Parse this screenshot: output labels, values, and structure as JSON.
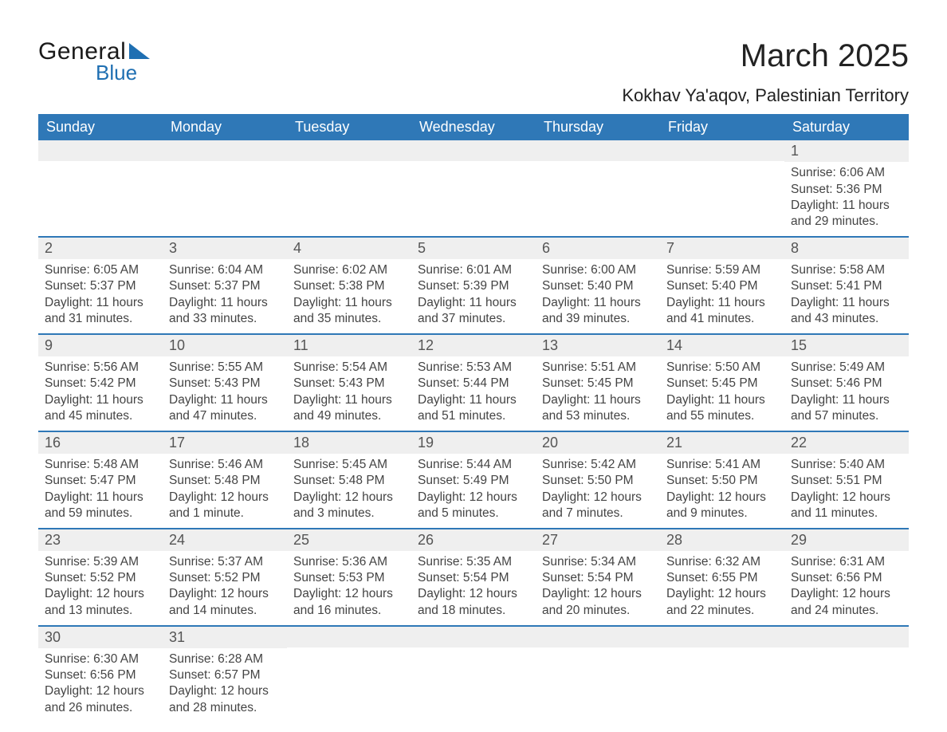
{
  "brand": {
    "word1": "General",
    "word2": "Blue",
    "accent": "#1f6fb2"
  },
  "title": "March 2025",
  "location": "Kokhav Ya'aqov, Palestinian Territory",
  "day_labels": [
    "Sunday",
    "Monday",
    "Tuesday",
    "Wednesday",
    "Thursday",
    "Friday",
    "Saturday"
  ],
  "colors": {
    "header_bg": "#2f78b7",
    "header_text": "#ffffff",
    "row_border": "#2f78b7",
    "daynum_bg": "#efefef",
    "text": "#3a3a3a"
  },
  "weeks": [
    [
      null,
      null,
      null,
      null,
      null,
      null,
      {
        "n": "1",
        "sunrise": "6:06 AM",
        "sunset": "5:36 PM",
        "daylight": "11 hours and 29 minutes."
      }
    ],
    [
      {
        "n": "2",
        "sunrise": "6:05 AM",
        "sunset": "5:37 PM",
        "daylight": "11 hours and 31 minutes."
      },
      {
        "n": "3",
        "sunrise": "6:04 AM",
        "sunset": "5:37 PM",
        "daylight": "11 hours and 33 minutes."
      },
      {
        "n": "4",
        "sunrise": "6:02 AM",
        "sunset": "5:38 PM",
        "daylight": "11 hours and 35 minutes."
      },
      {
        "n": "5",
        "sunrise": "6:01 AM",
        "sunset": "5:39 PM",
        "daylight": "11 hours and 37 minutes."
      },
      {
        "n": "6",
        "sunrise": "6:00 AM",
        "sunset": "5:40 PM",
        "daylight": "11 hours and 39 minutes."
      },
      {
        "n": "7",
        "sunrise": "5:59 AM",
        "sunset": "5:40 PM",
        "daylight": "11 hours and 41 minutes."
      },
      {
        "n": "8",
        "sunrise": "5:58 AM",
        "sunset": "5:41 PM",
        "daylight": "11 hours and 43 minutes."
      }
    ],
    [
      {
        "n": "9",
        "sunrise": "5:56 AM",
        "sunset": "5:42 PM",
        "daylight": "11 hours and 45 minutes."
      },
      {
        "n": "10",
        "sunrise": "5:55 AM",
        "sunset": "5:43 PM",
        "daylight": "11 hours and 47 minutes."
      },
      {
        "n": "11",
        "sunrise": "5:54 AM",
        "sunset": "5:43 PM",
        "daylight": "11 hours and 49 minutes."
      },
      {
        "n": "12",
        "sunrise": "5:53 AM",
        "sunset": "5:44 PM",
        "daylight": "11 hours and 51 minutes."
      },
      {
        "n": "13",
        "sunrise": "5:51 AM",
        "sunset": "5:45 PM",
        "daylight": "11 hours and 53 minutes."
      },
      {
        "n": "14",
        "sunrise": "5:50 AM",
        "sunset": "5:45 PM",
        "daylight": "11 hours and 55 minutes."
      },
      {
        "n": "15",
        "sunrise": "5:49 AM",
        "sunset": "5:46 PM",
        "daylight": "11 hours and 57 minutes."
      }
    ],
    [
      {
        "n": "16",
        "sunrise": "5:48 AM",
        "sunset": "5:47 PM",
        "daylight": "11 hours and 59 minutes."
      },
      {
        "n": "17",
        "sunrise": "5:46 AM",
        "sunset": "5:48 PM",
        "daylight": "12 hours and 1 minute."
      },
      {
        "n": "18",
        "sunrise": "5:45 AM",
        "sunset": "5:48 PM",
        "daylight": "12 hours and 3 minutes."
      },
      {
        "n": "19",
        "sunrise": "5:44 AM",
        "sunset": "5:49 PM",
        "daylight": "12 hours and 5 minutes."
      },
      {
        "n": "20",
        "sunrise": "5:42 AM",
        "sunset": "5:50 PM",
        "daylight": "12 hours and 7 minutes."
      },
      {
        "n": "21",
        "sunrise": "5:41 AM",
        "sunset": "5:50 PM",
        "daylight": "12 hours and 9 minutes."
      },
      {
        "n": "22",
        "sunrise": "5:40 AM",
        "sunset": "5:51 PM",
        "daylight": "12 hours and 11 minutes."
      }
    ],
    [
      {
        "n": "23",
        "sunrise": "5:39 AM",
        "sunset": "5:52 PM",
        "daylight": "12 hours and 13 minutes."
      },
      {
        "n": "24",
        "sunrise": "5:37 AM",
        "sunset": "5:52 PM",
        "daylight": "12 hours and 14 minutes."
      },
      {
        "n": "25",
        "sunrise": "5:36 AM",
        "sunset": "5:53 PM",
        "daylight": "12 hours and 16 minutes."
      },
      {
        "n": "26",
        "sunrise": "5:35 AM",
        "sunset": "5:54 PM",
        "daylight": "12 hours and 18 minutes."
      },
      {
        "n": "27",
        "sunrise": "5:34 AM",
        "sunset": "5:54 PM",
        "daylight": "12 hours and 20 minutes."
      },
      {
        "n": "28",
        "sunrise": "6:32 AM",
        "sunset": "6:55 PM",
        "daylight": "12 hours and 22 minutes."
      },
      {
        "n": "29",
        "sunrise": "6:31 AM",
        "sunset": "6:56 PM",
        "daylight": "12 hours and 24 minutes."
      }
    ],
    [
      {
        "n": "30",
        "sunrise": "6:30 AM",
        "sunset": "6:56 PM",
        "daylight": "12 hours and 26 minutes."
      },
      {
        "n": "31",
        "sunrise": "6:28 AM",
        "sunset": "6:57 PM",
        "daylight": "12 hours and 28 minutes."
      },
      null,
      null,
      null,
      null,
      null
    ]
  ],
  "labels": {
    "sunrise_prefix": "Sunrise: ",
    "sunset_prefix": "Sunset: ",
    "daylight_prefix": "Daylight: "
  }
}
